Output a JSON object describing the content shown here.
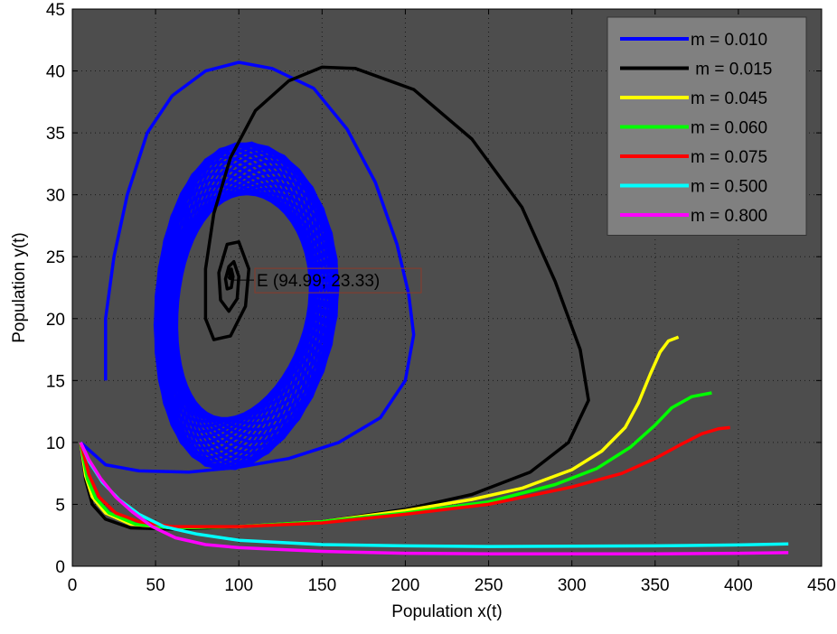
{
  "chart_data": {
    "type": "line",
    "title": "",
    "xlabel": "Population x(t)",
    "ylabel": "Population y(t)",
    "xlim": [
      0,
      450
    ],
    "ylim": [
      0,
      45
    ],
    "x_ticks": [
      0,
      50,
      100,
      150,
      200,
      250,
      300,
      350,
      400,
      450
    ],
    "y_ticks": [
      0,
      5,
      10,
      15,
      20,
      25,
      30,
      35,
      40,
      45
    ],
    "grid": true,
    "legend_position": "top-right",
    "background_color": "#4d4d4d",
    "annotation": {
      "text": "E (94.99; 23.33)",
      "x": 94.99,
      "y": 23.33
    },
    "series": [
      {
        "name": "m = 0.010",
        "color": "#0000ff",
        "type": "limit-cycle",
        "points": [
          [
            5,
            10
          ],
          [
            20,
            8.2
          ],
          [
            40,
            7.7
          ],
          [
            70,
            7.6
          ],
          [
            100,
            8
          ],
          [
            130,
            8.7
          ],
          [
            160,
            10
          ],
          [
            185,
            12
          ],
          [
            200,
            15
          ],
          [
            205,
            18.7
          ],
          [
            202,
            22
          ],
          [
            195,
            26
          ],
          [
            182,
            31
          ],
          [
            165,
            35.3
          ],
          [
            145,
            38.6
          ],
          [
            120,
            40.2
          ],
          [
            100,
            40.7
          ],
          [
            80,
            40
          ],
          [
            60,
            38
          ],
          [
            45,
            35
          ],
          [
            33,
            30
          ],
          [
            25,
            25
          ],
          [
            20,
            20
          ],
          [
            20,
            15
          ]
        ],
        "cycle": {
          "cx": 98,
          "cy": 21,
          "rx_outer": 55,
          "ry_outer": 12.5,
          "rx_inner": 40,
          "ry_inner": 8.5
        }
      },
      {
        "name": " m = 0.015",
        "color": "#000000",
        "type": "spiral",
        "points": [
          [
            5,
            10
          ],
          [
            8,
            7
          ],
          [
            12,
            5
          ],
          [
            20,
            3.8
          ],
          [
            35,
            3.1
          ],
          [
            60,
            3
          ],
          [
            100,
            3.2
          ],
          [
            150,
            3.6
          ],
          [
            200,
            4.6
          ],
          [
            240,
            5.8
          ],
          [
            275,
            7.6
          ],
          [
            298,
            10
          ],
          [
            310,
            13.4
          ],
          [
            305,
            17.5
          ],
          [
            290,
            23
          ],
          [
            270,
            29
          ],
          [
            240,
            34.5
          ],
          [
            205,
            38.5
          ],
          [
            170,
            40.2
          ],
          [
            150,
            40.3
          ],
          [
            130,
            39.2
          ],
          [
            110,
            36.8
          ],
          [
            95,
            33
          ],
          [
            85,
            28.5
          ],
          [
            80,
            24
          ],
          [
            80,
            20
          ],
          [
            85,
            18.3
          ],
          [
            95,
            18.6
          ],
          [
            104,
            21
          ],
          [
            106,
            24
          ],
          [
            100,
            26.2
          ],
          [
            93,
            26
          ],
          [
            88,
            23.7
          ],
          [
            89,
            21.5
          ],
          [
            94,
            20.6
          ],
          [
            99,
            21.6
          ],
          [
            100,
            23.4
          ],
          [
            97,
            24.6
          ],
          [
            94,
            24.2
          ],
          [
            92,
            23.2
          ],
          [
            93,
            22.4
          ],
          [
            95.5,
            22.5
          ],
          [
            96.5,
            23.4
          ],
          [
            95.5,
            24
          ],
          [
            94.5,
            23.6
          ],
          [
            94.99,
            23.33
          ]
        ]
      },
      {
        "name": "m = 0.045",
        "color": "#ffff00",
        "points": [
          [
            5,
            10
          ],
          [
            8,
            7.3
          ],
          [
            12,
            5.6
          ],
          [
            20,
            4.3
          ],
          [
            35,
            3.4
          ],
          [
            60,
            3.1
          ],
          [
            100,
            3.2
          ],
          [
            150,
            3.6
          ],
          [
            200,
            4.5
          ],
          [
            240,
            5.4
          ],
          [
            270,
            6.3
          ],
          [
            300,
            7.8
          ],
          [
            318,
            9.3
          ],
          [
            332,
            11.2
          ],
          [
            340,
            13.2
          ],
          [
            347,
            15.5
          ],
          [
            353,
            17.3
          ],
          [
            358,
            18.2
          ],
          [
            364,
            18.5
          ]
        ]
      },
      {
        "name": "m = 0.060",
        "color": "#00ff00",
        "points": [
          [
            5,
            10
          ],
          [
            9,
            7.1
          ],
          [
            14,
            5.5
          ],
          [
            22,
            4.3
          ],
          [
            38,
            3.4
          ],
          [
            60,
            3.1
          ],
          [
            100,
            3.2
          ],
          [
            150,
            3.6
          ],
          [
            200,
            4.3
          ],
          [
            250,
            5.2
          ],
          [
            290,
            6.6
          ],
          [
            315,
            7.9
          ],
          [
            335,
            9.6
          ],
          [
            350,
            11.4
          ],
          [
            360,
            12.8
          ],
          [
            372,
            13.7
          ],
          [
            384,
            14
          ]
        ]
      },
      {
        "name": "m = 0.075",
        "color": "#ff0000",
        "points": [
          [
            5,
            10
          ],
          [
            10,
            7.4
          ],
          [
            16,
            5.6
          ],
          [
            26,
            4.3
          ],
          [
            40,
            3.6
          ],
          [
            60,
            3.2
          ],
          [
            100,
            3.2
          ],
          [
            150,
            3.5
          ],
          [
            200,
            4.2
          ],
          [
            250,
            5
          ],
          [
            300,
            6.4
          ],
          [
            330,
            7.5
          ],
          [
            350,
            8.7
          ],
          [
            365,
            9.8
          ],
          [
            378,
            10.7
          ],
          [
            388,
            11.1
          ],
          [
            395,
            11.2
          ]
        ]
      },
      {
        "name": "m = 0.500",
        "color": "#00ffff",
        "points": [
          [
            5,
            10
          ],
          [
            10,
            8.5
          ],
          [
            18,
            6.8
          ],
          [
            28,
            5.4
          ],
          [
            40,
            4.2
          ],
          [
            55,
            3.2
          ],
          [
            75,
            2.6
          ],
          [
            100,
            2.1
          ],
          [
            150,
            1.75
          ],
          [
            200,
            1.65
          ],
          [
            250,
            1.6
          ],
          [
            300,
            1.62
          ],
          [
            350,
            1.65
          ],
          [
            400,
            1.72
          ],
          [
            430,
            1.8
          ]
        ]
      },
      {
        "name": "m = 0.800",
        "color": "#ff00ff",
        "points": [
          [
            5,
            10
          ],
          [
            10,
            8.6
          ],
          [
            17,
            7.1
          ],
          [
            26,
            5.6
          ],
          [
            36,
            4.4
          ],
          [
            48,
            3.2
          ],
          [
            62,
            2.3
          ],
          [
            80,
            1.75
          ],
          [
            100,
            1.5
          ],
          [
            150,
            1.2
          ],
          [
            200,
            1.05
          ],
          [
            250,
            1.0
          ],
          [
            300,
            1.0
          ],
          [
            350,
            1.0
          ],
          [
            400,
            1.05
          ],
          [
            430,
            1.1
          ]
        ]
      }
    ]
  }
}
